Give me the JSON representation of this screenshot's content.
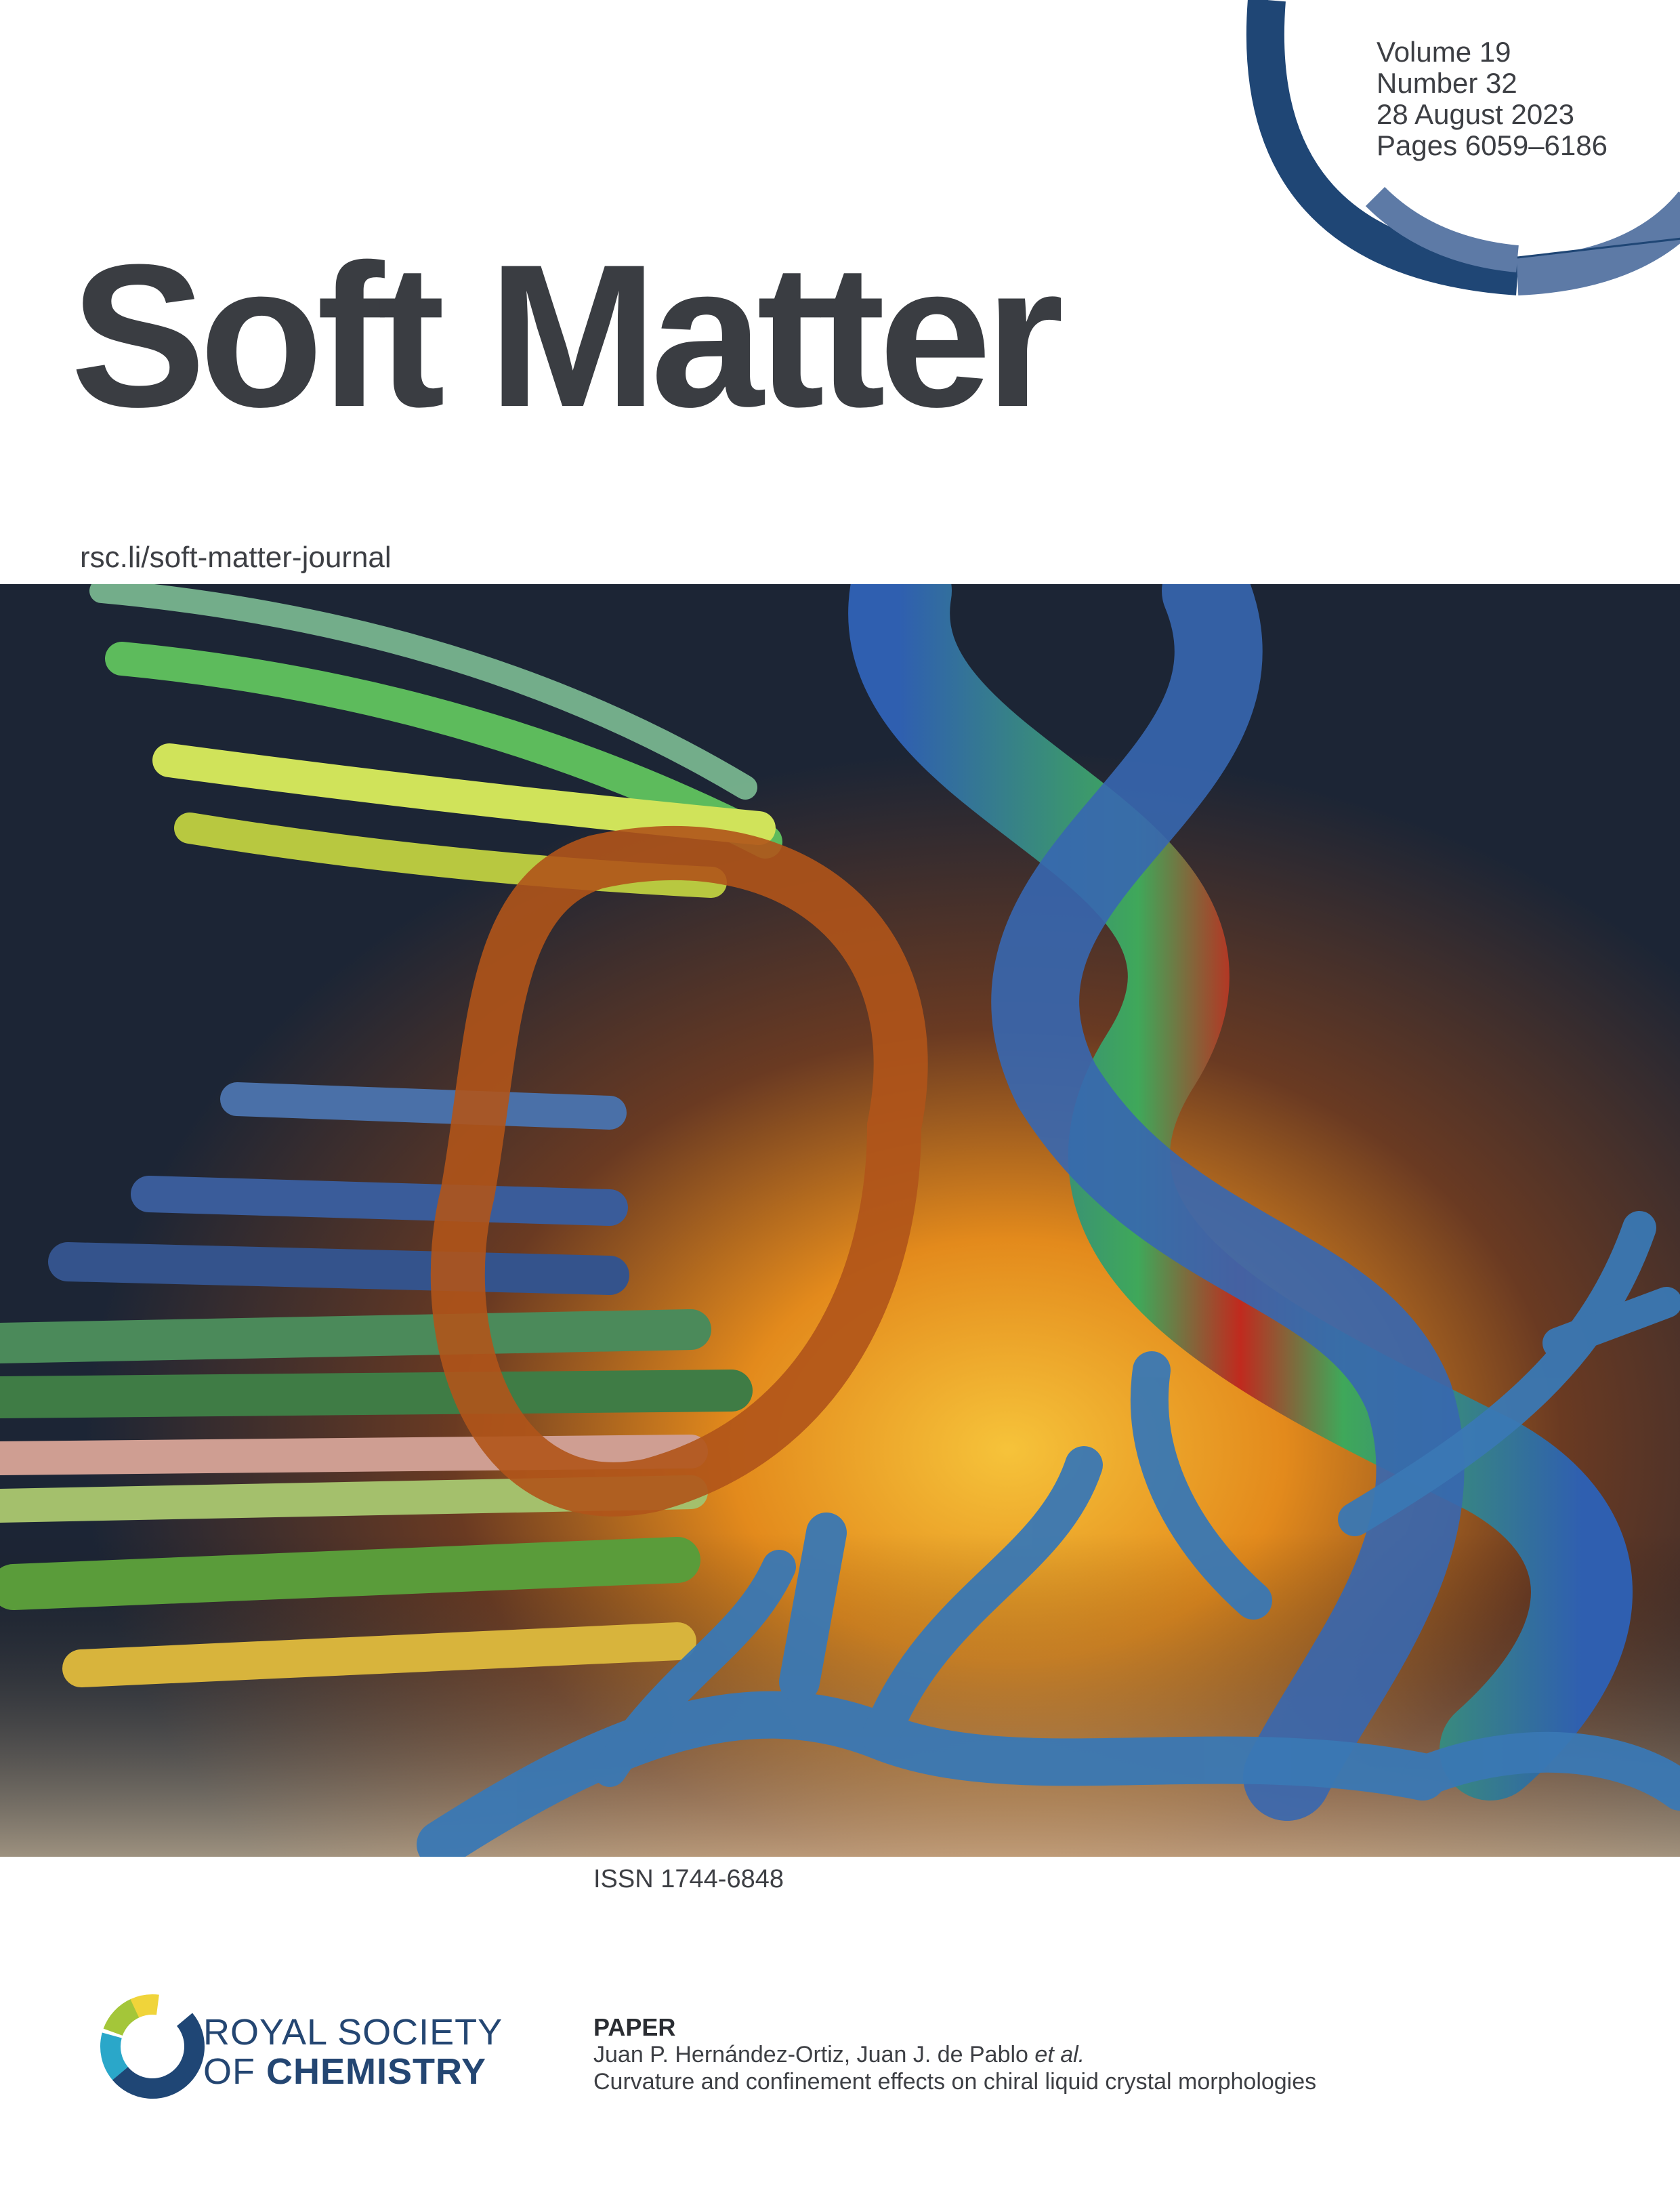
{
  "issue": {
    "volume": "Volume 19",
    "number": "Number 32",
    "date": "28 August 2023",
    "pages": "Pages 6059–6186"
  },
  "journal": {
    "title": "Soft Matter",
    "url": "rsc.li/soft-matter-journal",
    "issn": "ISSN 1744-6848"
  },
  "publisher": {
    "line1_prefix": "ROYAL",
    "line1_suffix": "SOCIETY",
    "line2_prefix": "OF",
    "line2_suffix": "CHEMISTRY",
    "brand_color": "#244672"
  },
  "paper": {
    "label": "PAPER",
    "authors": "Juan P. Hernández-Ortiz, Juan J. de Pablo",
    "authors_suffix": "et al.",
    "title": "Curvature and confinement effects on chiral liquid crystal morphologies"
  },
  "colors": {
    "arc_dark": "#1f4675",
    "arc_light": "#5d7aa6",
    "title_text": "#3a3d42"
  }
}
